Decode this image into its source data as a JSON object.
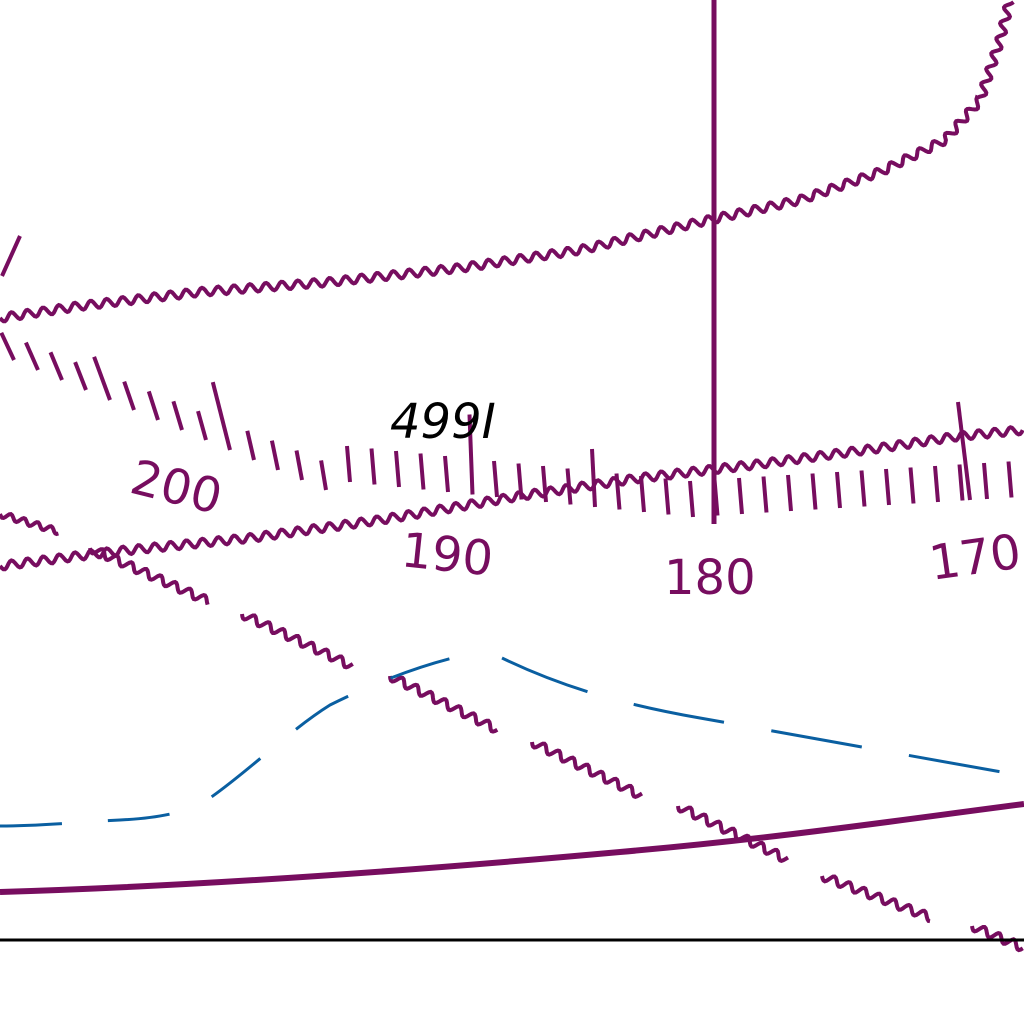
{
  "colors": {
    "chart_line": "#770d5f",
    "dashed_line": "#0a5fa1",
    "text_dark": "#000000",
    "background": "#ffffff"
  },
  "map": {
    "scale_labels": [
      "200",
      "190",
      "180",
      "170"
    ],
    "sounding": "499I"
  }
}
